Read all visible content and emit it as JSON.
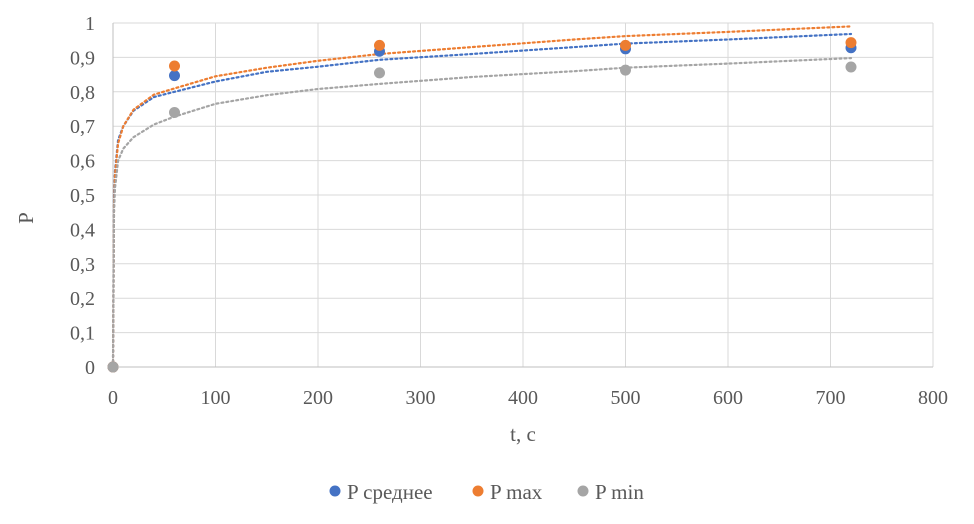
{
  "chart_data": {
    "type": "scatter",
    "title": "",
    "xlabel": "t, c",
    "ylabel": "P",
    "xlim": [
      0,
      800
    ],
    "ylim": [
      0,
      1
    ],
    "xticks": [
      "0",
      "100",
      "200",
      "300",
      "400",
      "500",
      "600",
      "700",
      "800"
    ],
    "yticks": [
      "0",
      "0,1",
      "0,2",
      "0,3",
      "0,4",
      "0,5",
      "0,6",
      "0,7",
      "0,8",
      "0,9",
      "1"
    ],
    "grid": true,
    "legend_position": "bottom",
    "series": [
      {
        "name": "P среднее",
        "color": "#4472C4",
        "x": [
          0,
          60,
          260,
          500,
          720
        ],
        "y": [
          0,
          0.847,
          0.918,
          0.925,
          0.928
        ],
        "trendline": {
          "kind": "logarithmic",
          "x": [
            1,
            2,
            5,
            10,
            20,
            40,
            60,
            100,
            150,
            200,
            260,
            350,
            450,
            500,
            600,
            720
          ],
          "y": [
            0.5,
            0.57,
            0.66,
            0.7,
            0.745,
            0.785,
            0.8,
            0.83,
            0.858,
            0.873,
            0.893,
            0.91,
            0.93,
            0.94,
            0.952,
            0.968
          ]
        }
      },
      {
        "name": "P max",
        "color": "#ED7D31",
        "x": [
          0,
          60,
          260,
          500,
          720
        ],
        "y": [
          0,
          0.875,
          0.935,
          0.935,
          0.943
        ],
        "trendline": {
          "kind": "logarithmic",
          "x": [
            1,
            2,
            5,
            10,
            20,
            40,
            60,
            100,
            150,
            200,
            260,
            350,
            450,
            500,
            600,
            720
          ],
          "y": [
            0.47,
            0.56,
            0.65,
            0.7,
            0.748,
            0.792,
            0.81,
            0.845,
            0.87,
            0.89,
            0.91,
            0.93,
            0.952,
            0.962,
            0.974,
            0.99
          ]
        }
      },
      {
        "name": "P min",
        "color": "#A5A5A5",
        "x": [
          0,
          60,
          260,
          500,
          720
        ],
        "y": [
          0,
          0.74,
          0.855,
          0.863,
          0.872
        ],
        "trendline": {
          "kind": "logarithmic",
          "x": [
            1,
            2,
            5,
            10,
            20,
            40,
            60,
            100,
            150,
            200,
            260,
            350,
            450,
            500,
            600,
            720
          ],
          "y": [
            0.45,
            0.52,
            0.6,
            0.635,
            0.668,
            0.705,
            0.728,
            0.765,
            0.79,
            0.808,
            0.823,
            0.843,
            0.86,
            0.87,
            0.882,
            0.898
          ]
        }
      }
    ]
  }
}
